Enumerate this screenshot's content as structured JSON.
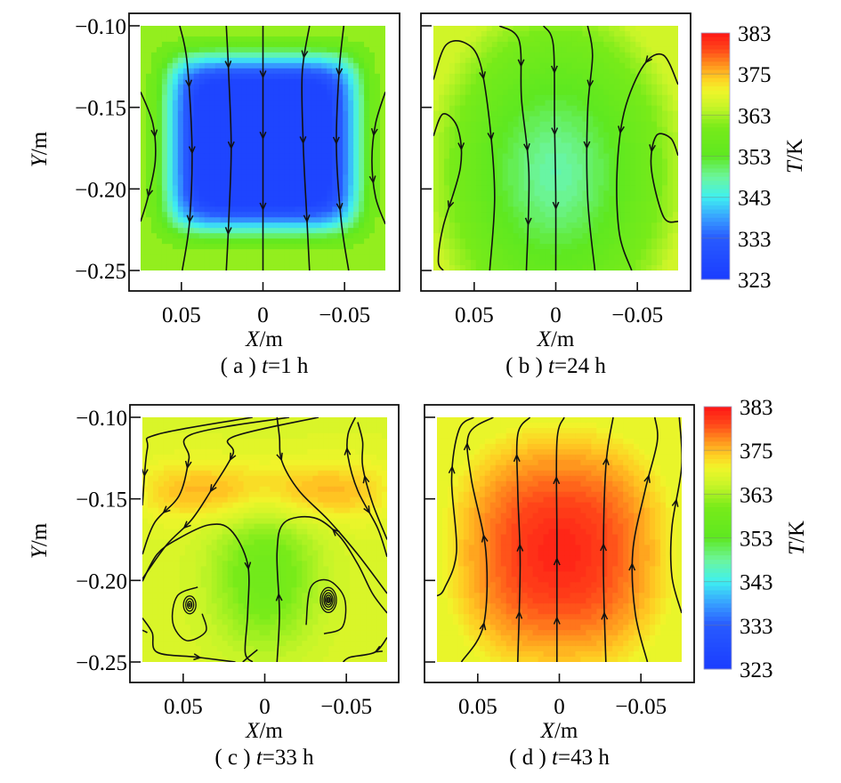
{
  "chart_data": [
    {
      "type": "heatmap",
      "panel": "a",
      "caption": {
        "prefix": "( a ) ",
        "var": "t",
        "suffix": "=1 h"
      },
      "xlabel": {
        "var": "X",
        "unit": "/m"
      },
      "ylabel": {
        "var": "Y",
        "unit": "/m"
      },
      "xticks": [
        {
          "value": 0.05,
          "label": "0.05"
        },
        {
          "value": 0,
          "label": "0"
        },
        {
          "value": -0.05,
          "label": "−0.05"
        }
      ],
      "yticks": [
        {
          "value": -0.1,
          "label": "−0.10"
        },
        {
          "value": -0.15,
          "label": "−0.15"
        },
        {
          "value": -0.2,
          "label": "−0.20"
        },
        {
          "value": -0.25,
          "label": "−0.25"
        }
      ],
      "xlim": [
        0.075,
        -0.075
      ],
      "ylim": [
        -0.25,
        -0.1
      ],
      "field": {
        "center_T": 326,
        "edge_T": 358,
        "shape": "square-cold-core"
      },
      "flow_direction": "downward",
      "show_y_tick_labels": true,
      "colorbar": false
    },
    {
      "type": "heatmap",
      "panel": "b",
      "caption": {
        "prefix": "( b ) ",
        "var": "t",
        "suffix": "=24 h"
      },
      "xlabel": {
        "var": "X",
        "unit": "/m"
      },
      "ylabel": {
        "var": "Y",
        "unit": "/m"
      },
      "xticks": [
        {
          "value": 0.05,
          "label": "0.05"
        },
        {
          "value": 0,
          "label": "0"
        },
        {
          "value": -0.05,
          "label": "−0.05"
        }
      ],
      "yticks": [
        {
          "value": -0.1,
          "label": ""
        },
        {
          "value": -0.15,
          "label": ""
        },
        {
          "value": -0.2,
          "label": ""
        },
        {
          "value": -0.25,
          "label": ""
        }
      ],
      "xlim": [
        0.075,
        -0.075
      ],
      "ylim": [
        -0.25,
        -0.1
      ],
      "field": {
        "center_T": 347,
        "edge_T": 366,
        "shape": "elliptic-cool-center"
      },
      "flow_direction": "downward-center, recirculating-sides",
      "show_y_tick_labels": false,
      "colorbar": true
    },
    {
      "type": "heatmap",
      "panel": "c",
      "caption": {
        "prefix": "( c ) ",
        "var": "t",
        "suffix": "=33 h"
      },
      "xlabel": {
        "var": "X",
        "unit": "/m"
      },
      "ylabel": {
        "var": "Y",
        "unit": "/m"
      },
      "xticks": [
        {
          "value": 0.05,
          "label": "0.05"
        },
        {
          "value": 0,
          "label": "0"
        },
        {
          "value": -0.05,
          "label": "−0.05"
        }
      ],
      "yticks": [
        {
          "value": -0.1,
          "label": "−0.10"
        },
        {
          "value": -0.15,
          "label": "−0.15"
        },
        {
          "value": -0.2,
          "label": "−0.20"
        },
        {
          "value": -0.25,
          "label": "−0.25"
        }
      ],
      "xlim": [
        0.075,
        -0.075
      ],
      "ylim": [
        -0.25,
        -0.1
      ],
      "field": {
        "warm_band_T": 372,
        "lower_center_T": 360,
        "edge_T": 367,
        "shape": "warm-upper-band"
      },
      "vortices": [
        {
          "x": 0.046,
          "y": -0.215
        },
        {
          "x": -0.039,
          "y": -0.212
        }
      ],
      "flow_direction": "two-vortex",
      "show_y_tick_labels": true,
      "colorbar": false
    },
    {
      "type": "heatmap",
      "panel": "d",
      "caption": {
        "prefix": "( d ) ",
        "var": "t",
        "suffix": "=43 h"
      },
      "xlabel": {
        "var": "X",
        "unit": "/m"
      },
      "ylabel": {
        "var": "Y",
        "unit": "/m"
      },
      "xticks": [
        {
          "value": 0.05,
          "label": "0.05"
        },
        {
          "value": 0,
          "label": "0"
        },
        {
          "value": -0.05,
          "label": "−0.05"
        }
      ],
      "yticks": [
        {
          "value": -0.1,
          "label": ""
        },
        {
          "value": -0.15,
          "label": ""
        },
        {
          "value": -0.2,
          "label": ""
        },
        {
          "value": -0.25,
          "label": ""
        }
      ],
      "xlim": [
        0.075,
        -0.075
      ],
      "ylim": [
        -0.25,
        -0.1
      ],
      "field": {
        "center_T": 382,
        "edge_T": 368,
        "shape": "hot-core"
      },
      "flow_direction": "upward",
      "show_y_tick_labels": false,
      "colorbar": true
    }
  ],
  "colorbar": {
    "title": {
      "var": "T",
      "unit": "/K"
    },
    "ticks": [
      "383",
      "375",
      "363",
      "353",
      "343",
      "333",
      "323"
    ],
    "tick_values": [
      383,
      375,
      363,
      353,
      343,
      333,
      323
    ],
    "range": [
      323,
      383
    ],
    "colors": [
      "#1a3cff",
      "#2f6bff",
      "#3ff0f0",
      "#6cf59a",
      "#5ee820",
      "#d8f52e",
      "#fff12a",
      "#ff9a1f",
      "#ff1a1a"
    ]
  }
}
